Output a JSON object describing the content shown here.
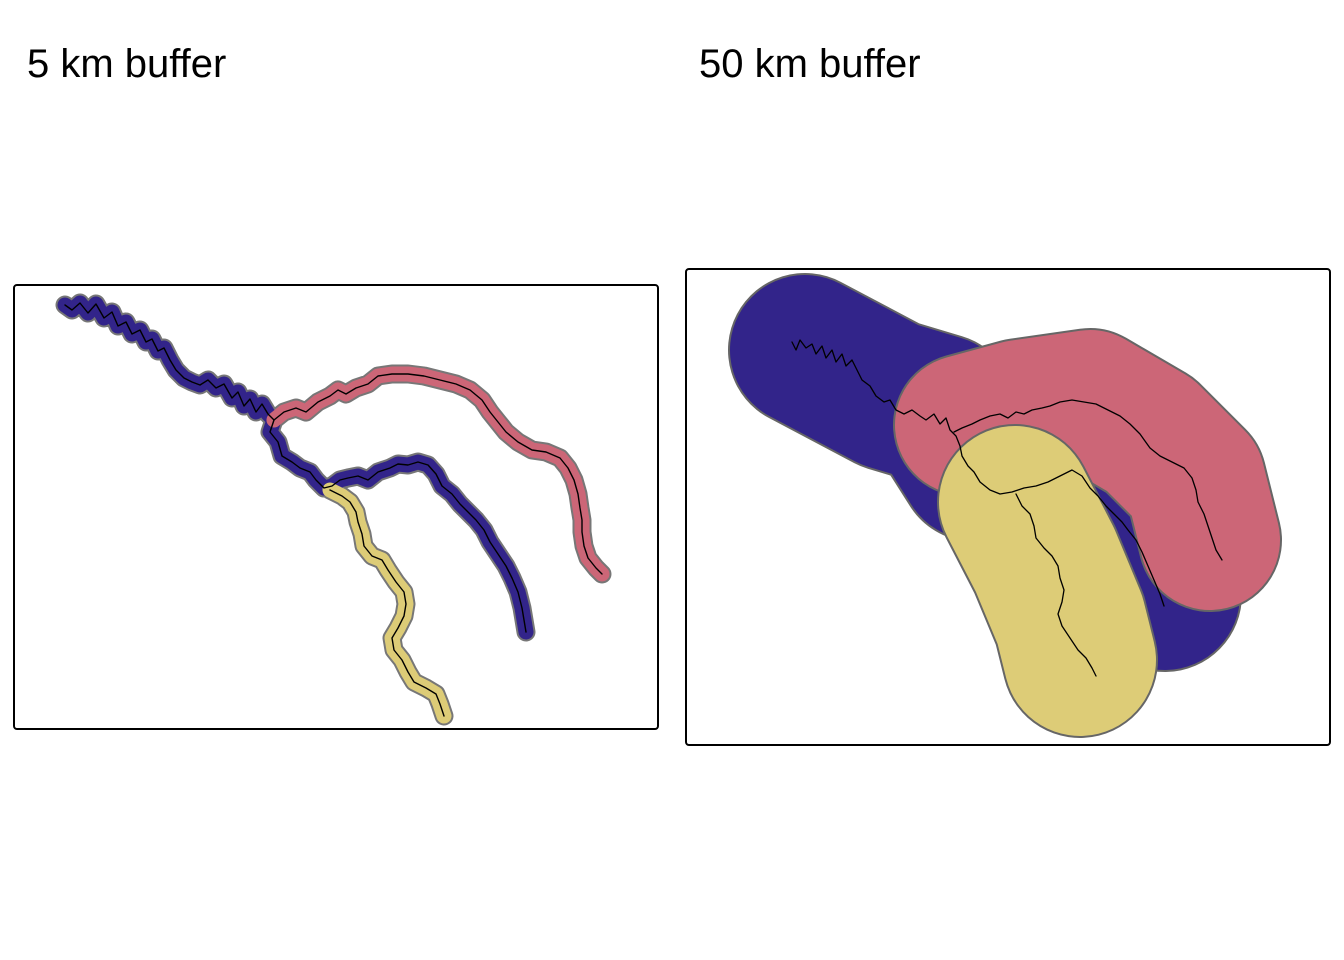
{
  "panels": [
    {
      "title": "5 km buffer"
    },
    {
      "title": "50 km buffer"
    }
  ],
  "colors": {
    "blue_river": "#32248A",
    "red_river": "#CC6677",
    "yellow_river": "#DDCC77",
    "buffer_outline": "#666666",
    "river_line": "#000000"
  }
}
